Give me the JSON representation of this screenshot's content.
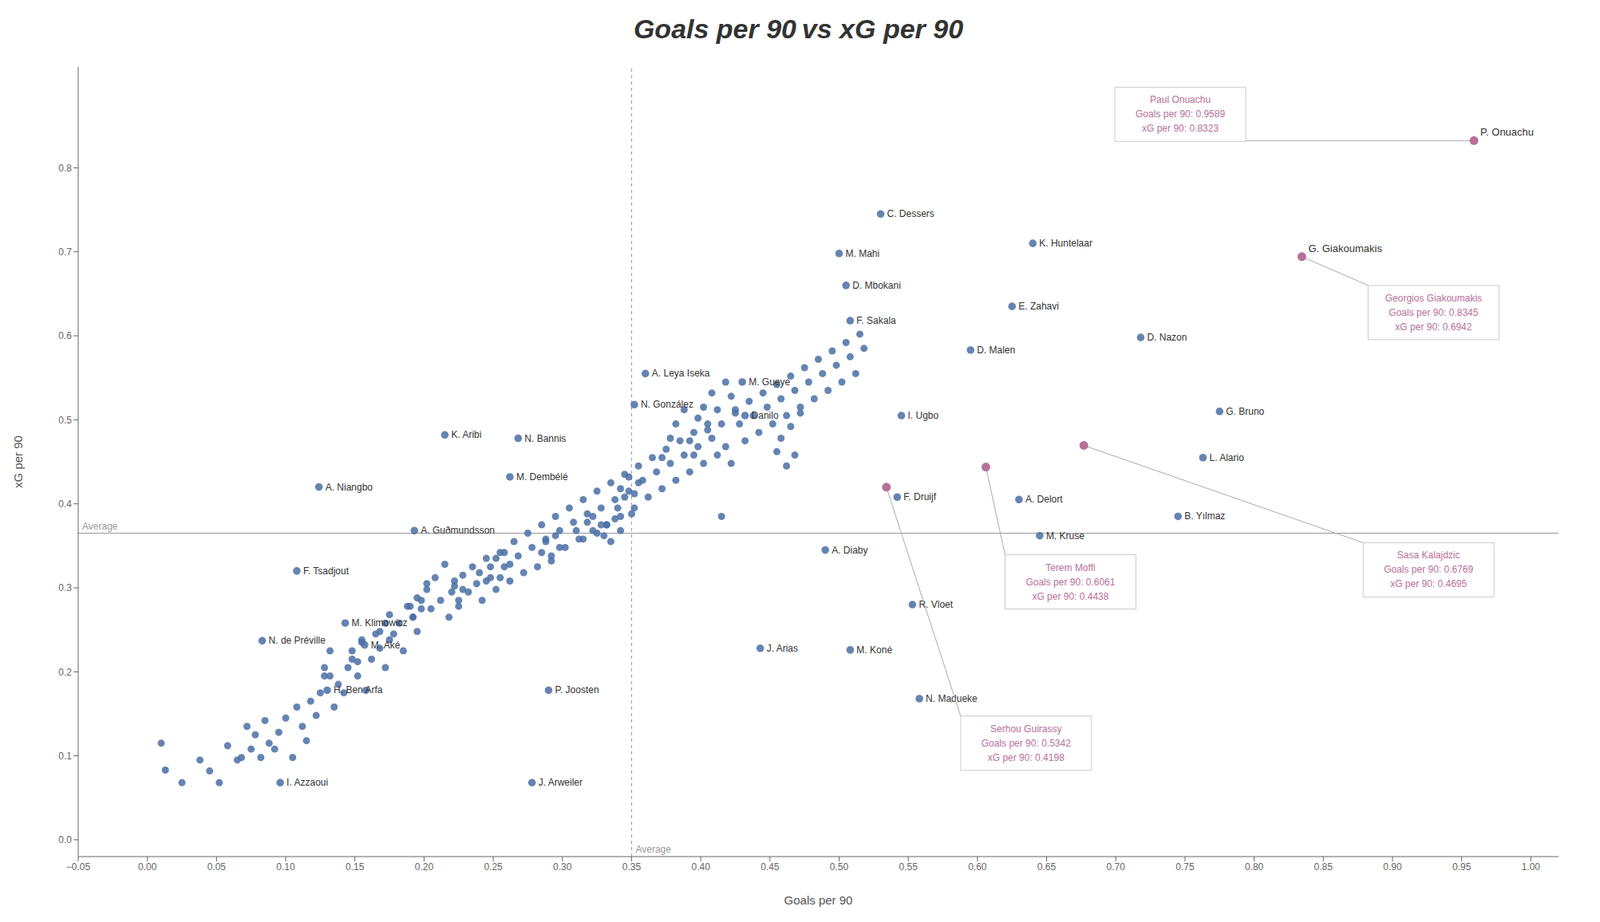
{
  "chart_data": {
    "type": "scatter",
    "title": "Goals per 90 vs xG per 90",
    "x_label": "Goals per 90",
    "y_label": "xG per 90",
    "xlim": [
      -0.05,
      1.02
    ],
    "ylim": [
      -0.02,
      0.92
    ],
    "xticks": [
      {
        "value": -0.05,
        "label": "−0.05"
      },
      {
        "value": 0.0,
        "label": "0.00"
      },
      0.05,
      {
        "value": 0.1,
        "label": "0.10"
      },
      0.15,
      {
        "value": 0.2,
        "label": "0.20"
      },
      0.25,
      {
        "value": 0.3,
        "label": "0.30"
      },
      0.35,
      {
        "value": 0.4,
        "label": "0.40"
      },
      0.45,
      {
        "value": 0.5,
        "label": "0.50"
      },
      0.55,
      {
        "value": 0.6,
        "label": "0.60"
      },
      0.65,
      {
        "value": 0.7,
        "label": "0.70"
      },
      0.75,
      {
        "value": 0.8,
        "label": "0.80"
      },
      0.85,
      {
        "value": 0.9,
        "label": "0.90"
      },
      0.95,
      {
        "value": 1.0,
        "label": "1.00"
      }
    ],
    "yticks": [
      {
        "value": 0.0,
        "label": "0.0"
      },
      0.1,
      0.2,
      0.3,
      0.4,
      0.5,
      0.6,
      0.7,
      0.8
    ],
    "grid": false,
    "reference_lines": [
      {
        "axis": "x",
        "value": 0.35,
        "label": "Average",
        "line_style": "dashed"
      },
      {
        "axis": "y",
        "value": 0.365,
        "label": "Average",
        "line_style": "solid"
      }
    ],
    "series": [
      {
        "color": "#4a6fa5",
        "x": [
          0.01,
          0.013,
          0.025,
          0.038,
          0.045,
          0.052,
          0.058,
          0.065,
          0.068,
          0.072,
          0.075,
          0.078,
          0.082,
          0.085,
          0.088,
          0.092,
          0.095,
          0.1,
          0.105,
          0.108,
          0.112,
          0.115,
          0.118,
          0.122,
          0.125,
          0.128,
          0.132,
          0.135,
          0.138,
          0.142,
          0.145,
          0.148,
          0.152,
          0.155,
          0.158,
          0.162,
          0.165,
          0.168,
          0.172,
          0.175,
          0.178,
          0.182,
          0.185,
          0.188,
          0.192,
          0.195,
          0.198,
          0.202,
          0.205,
          0.208,
          0.212,
          0.215,
          0.218,
          0.222,
          0.225,
          0.228,
          0.232,
          0.235,
          0.238,
          0.242,
          0.245,
          0.248,
          0.252,
          0.255,
          0.258,
          0.262,
          0.265,
          0.268,
          0.272,
          0.275,
          0.278,
          0.282,
          0.285,
          0.288,
          0.292,
          0.295,
          0.298,
          0.302,
          0.305,
          0.308,
          0.312,
          0.315,
          0.318,
          0.322,
          0.325,
          0.328,
          0.332,
          0.335,
          0.338,
          0.342,
          0.345,
          0.348,
          0.352,
          0.355,
          0.358,
          0.362,
          0.365,
          0.368,
          0.372,
          0.375,
          0.378,
          0.382,
          0.385,
          0.388,
          0.392,
          0.395,
          0.398,
          0.402,
          0.405,
          0.408,
          0.412,
          0.415,
          0.418,
          0.422,
          0.425,
          0.428,
          0.432,
          0.435,
          0.438,
          0.442,
          0.445,
          0.448,
          0.452,
          0.455,
          0.458,
          0.462,
          0.465,
          0.468,
          0.472,
          0.475,
          0.478,
          0.482,
          0.485,
          0.488,
          0.492,
          0.495,
          0.498,
          0.502,
          0.505,
          0.508,
          0.512,
          0.515,
          0.518,
          0.372,
          0.378,
          0.382,
          0.388,
          0.392,
          0.395,
          0.398,
          0.402,
          0.405,
          0.408,
          0.412,
          0.415,
          0.418,
          0.422,
          0.425,
          0.34,
          0.342,
          0.345,
          0.348,
          0.35,
          0.352,
          0.355,
          0.31,
          0.315,
          0.318,
          0.322,
          0.325,
          0.328,
          0.24,
          0.245,
          0.248,
          0.252,
          0.255,
          0.258,
          0.262,
          0.22,
          0.222,
          0.225,
          0.228,
          0.19,
          0.192,
          0.195,
          0.198,
          0.202,
          0.168,
          0.172,
          0.175,
          0.148,
          0.152,
          0.155,
          0.128,
          0.132,
          0.455,
          0.458,
          0.462,
          0.465,
          0.468,
          0.472,
          0.33,
          0.332,
          0.335,
          0.338,
          0.342,
          0.285,
          0.288,
          0.292,
          0.295,
          0.298
        ],
        "values": [
          0.115,
          0.083,
          0.068,
          0.095,
          0.082,
          0.068,
          0.112,
          0.095,
          0.098,
          0.135,
          0.108,
          0.125,
          0.098,
          0.142,
          0.115,
          0.108,
          0.128,
          0.145,
          0.098,
          0.158,
          0.135,
          0.118,
          0.165,
          0.148,
          0.175,
          0.195,
          0.225,
          0.158,
          0.185,
          0.175,
          0.205,
          0.215,
          0.195,
          0.238,
          0.178,
          0.215,
          0.245,
          0.228,
          0.205,
          0.268,
          0.245,
          0.258,
          0.225,
          0.278,
          0.265,
          0.248,
          0.285,
          0.298,
          0.275,
          0.312,
          0.285,
          0.328,
          0.265,
          0.302,
          0.278,
          0.315,
          0.295,
          0.325,
          0.305,
          0.285,
          0.335,
          0.312,
          0.298,
          0.342,
          0.325,
          0.308,
          0.355,
          0.338,
          0.318,
          0.365,
          0.348,
          0.325,
          0.375,
          0.358,
          0.338,
          0.385,
          0.368,
          0.348,
          0.395,
          0.378,
          0.358,
          0.405,
          0.388,
          0.368,
          0.415,
          0.395,
          0.375,
          0.425,
          0.405,
          0.385,
          0.435,
          0.415,
          0.395,
          0.445,
          0.428,
          0.408,
          0.455,
          0.438,
          0.418,
          0.465,
          0.448,
          0.428,
          0.475,
          0.458,
          0.438,
          0.485,
          0.468,
          0.448,
          0.495,
          0.478,
          0.458,
          0.385,
          0.468,
          0.448,
          0.512,
          0.495,
          0.475,
          0.522,
          0.505,
          0.485,
          0.532,
          0.515,
          0.495,
          0.542,
          0.525,
          0.505,
          0.552,
          0.535,
          0.515,
          0.562,
          0.545,
          0.525,
          0.572,
          0.555,
          0.535,
          0.582,
          0.565,
          0.545,
          0.592,
          0.575,
          0.555,
          0.602,
          0.585,
          0.455,
          0.478,
          0.495,
          0.512,
          0.475,
          0.458,
          0.502,
          0.515,
          0.488,
          0.532,
          0.512,
          0.495,
          0.545,
          0.528,
          0.508,
          0.395,
          0.418,
          0.408,
          0.432,
          0.388,
          0.412,
          0.425,
          0.368,
          0.358,
          0.378,
          0.385,
          0.365,
          0.375,
          0.318,
          0.308,
          0.325,
          0.335,
          0.312,
          0.342,
          0.328,
          0.295,
          0.308,
          0.285,
          0.298,
          0.278,
          0.265,
          0.288,
          0.275,
          0.305,
          0.248,
          0.258,
          0.238,
          0.225,
          0.212,
          0.235,
          0.205,
          0.195,
          0.462,
          0.478,
          0.445,
          0.492,
          0.458,
          0.508,
          0.362,
          0.375,
          0.355,
          0.382,
          0.368,
          0.342,
          0.355,
          0.332,
          0.362,
          0.348
        ]
      },
      {
        "color": "#4a6fa5",
        "x": [
          0.53,
          0.5,
          0.64,
          0.505,
          0.625,
          0.508,
          0.595,
          0.718,
          0.36,
          0.43,
          0.352,
          0.432,
          0.545,
          0.775,
          0.215,
          0.268,
          0.763,
          0.262,
          0.124,
          0.542,
          0.63,
          0.745,
          0.193,
          0.645,
          0.49,
          0.108,
          0.553,
          0.143,
          0.083,
          0.157,
          0.443,
          0.508,
          0.13,
          0.29,
          0.558,
          0.096,
          0.278
        ],
        "values": [
          0.745,
          0.698,
          0.71,
          0.66,
          0.635,
          0.618,
          0.583,
          0.598,
          0.555,
          0.545,
          0.518,
          0.505,
          0.505,
          0.51,
          0.482,
          0.478,
          0.455,
          0.432,
          0.42,
          0.408,
          0.405,
          0.385,
          0.368,
          0.362,
          0.345,
          0.32,
          0.28,
          0.258,
          0.237,
          0.232,
          0.228,
          0.226,
          0.178,
          0.178,
          0.168,
          0.068,
          0.068
        ],
        "point_labels": [
          "C. Dessers",
          "M. Mahi",
          "K. Huntelaar",
          "D. Mbokani",
          "E. Zahavi",
          "F. Sakala",
          "D. Malen",
          "D. Nazon",
          "A. Leya Iseka",
          "M. Gueye",
          "N. González",
          "Danilo",
          "I. Ugbo",
          "G. Bruno",
          "K. Aribi",
          "N. Bannis",
          "L. Alario",
          "M. Dembélé",
          "A. Niangbo",
          "F. Druijf",
          "A. Delort",
          "B. Yılmaz",
          "A. Guðmundsson",
          "M. Kruse",
          "A. Diaby",
          "F. Tsadjout",
          "R. Vloet",
          "M. Klimowicz",
          "N. de Préville",
          "M. Aké",
          "J. Arias",
          "M. Koné",
          "H. Ben Arfa",
          "P. Joosten",
          "N. Madueke",
          "I. Azzaoui",
          "J. Arweiler"
        ]
      },
      {
        "color": "#b87098",
        "x": [
          0.9589,
          0.8345,
          0.6061,
          0.5342,
          0.6769
        ],
        "values": [
          0.8323,
          0.6942,
          0.4438,
          0.4198,
          0.4695
        ],
        "point_labels": [
          "P. Onuachu",
          "G. Giakoumakis",
          null,
          null,
          null
        ],
        "boxes": [
          [
            "Paul Onuachu",
            "Goals per 90: 0.9589",
            "xG per 90: 0.8323"
          ],
          [
            "Georgios Giakoumakis",
            "Goals per 90: 0.8345",
            "xG per 90: 0.6942"
          ],
          [
            "Terem Moffi",
            "Goals per 90: 0.6061",
            "xG per 90: 0.4438"
          ],
          [
            "Serhou Guirassy",
            "Goals per 90: 0.5342",
            "xG per 90: 0.4198"
          ],
          [
            "Sasa Kalajdzic",
            "Goals per 90: 0.6769",
            "xG per 90: 0.4695"
          ]
        ]
      }
    ]
  }
}
